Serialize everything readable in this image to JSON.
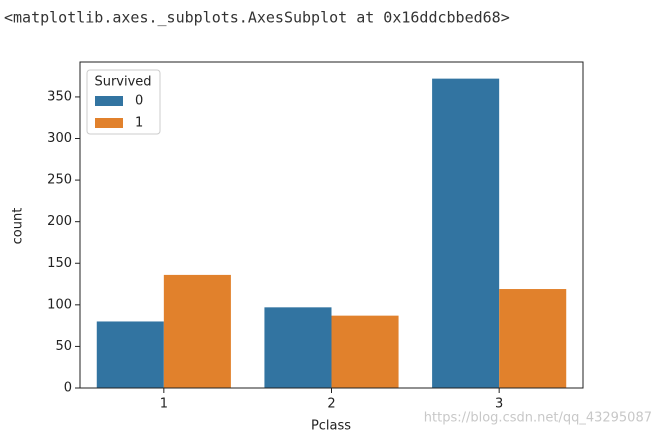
{
  "header_text": "<matplotlib.axes._subplots.AxesSubplot at 0x16ddcbbed68>",
  "watermark": "https://blog.csdn.net/qq_43295087",
  "chart_data": {
    "type": "bar",
    "x_label": "Pclass",
    "y_label": "count",
    "categories": [
      "1",
      "2",
      "3"
    ],
    "legend_title": "Survived",
    "legend": "upper left",
    "series": [
      {
        "name": "0",
        "color": "#3274a1",
        "values": [
          80,
          97,
          372
        ]
      },
      {
        "name": "1",
        "color": "#e1812c",
        "values": [
          136,
          87,
          119
        ]
      }
    ],
    "ylim": [
      0,
      392
    ],
    "yticks": [
      0,
      50,
      100,
      150,
      200,
      250,
      300,
      350
    ],
    "grid": false
  }
}
